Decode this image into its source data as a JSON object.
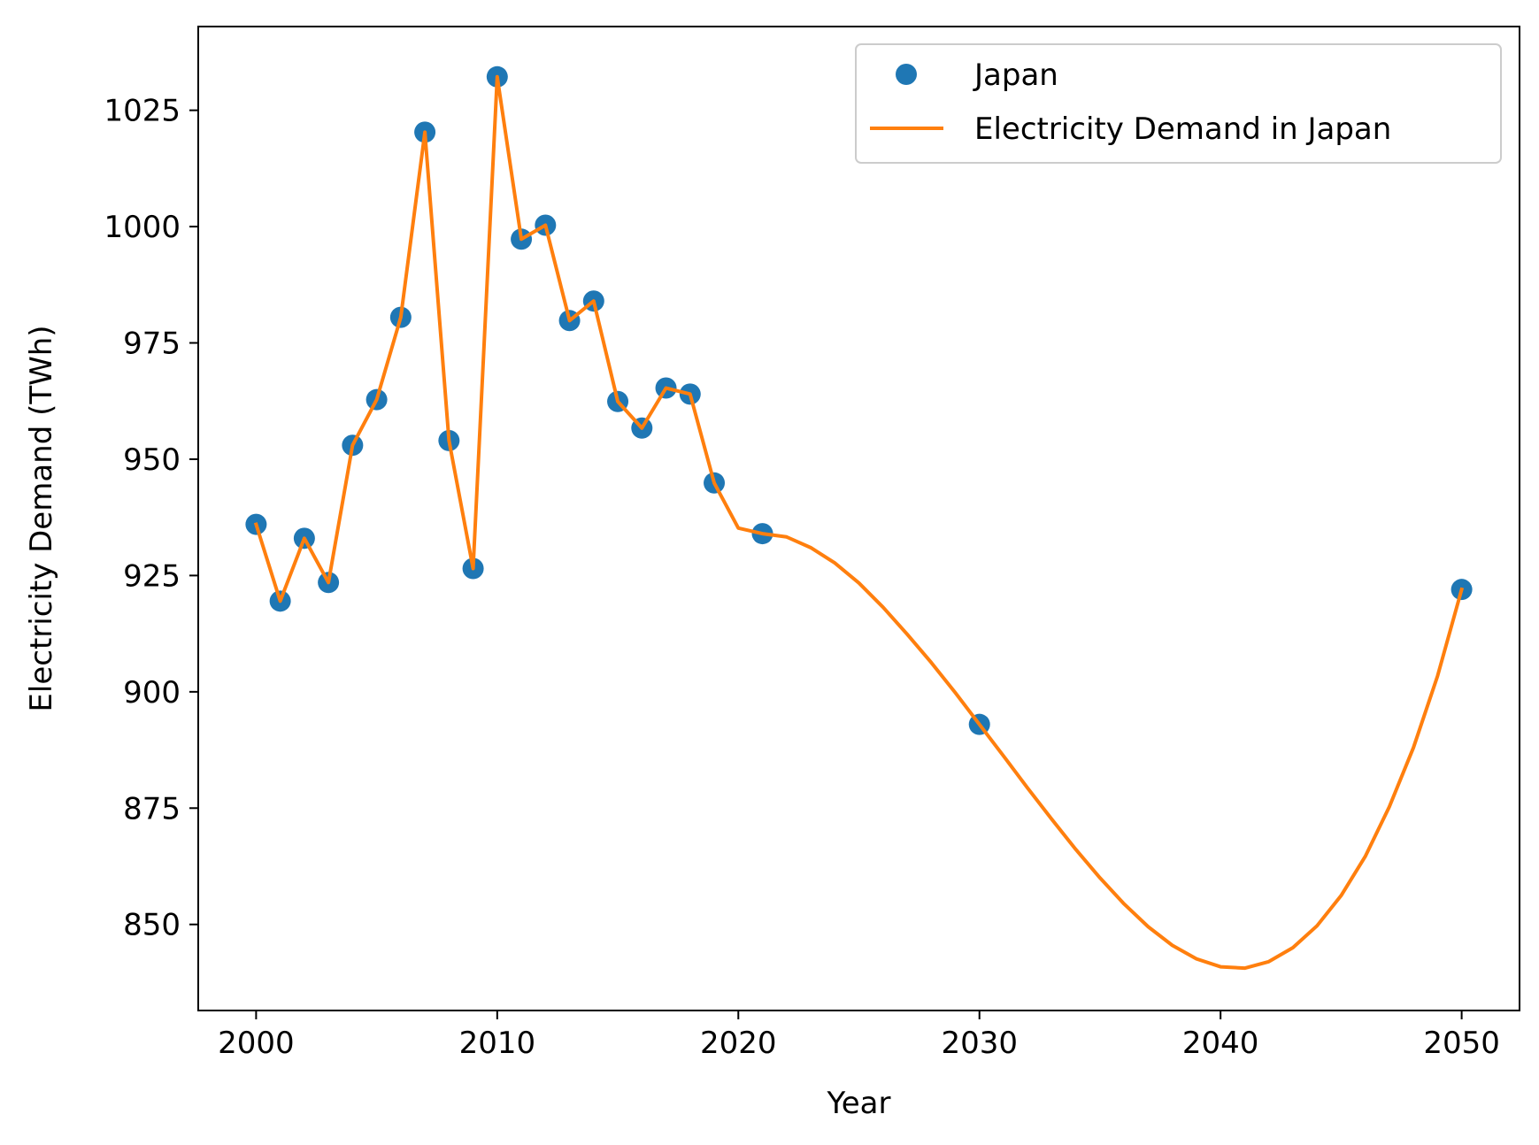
{
  "chart_data": {
    "type": "line",
    "xlabel": "Year",
    "ylabel": "Electricity Demand (TWh)",
    "xlim": [
      1997.6,
      2052.4
    ],
    "ylim": [
      831.5,
      1043.0
    ],
    "xticks": [
      2000,
      2010,
      2020,
      2030,
      2040,
      2050
    ],
    "yticks": [
      850,
      875,
      900,
      925,
      950,
      975,
      1000,
      1025
    ],
    "grid": false,
    "legend_position": "top-right",
    "colors": {
      "points": "#1f77b4",
      "line": "#ff7f0e"
    },
    "series": [
      {
        "name": "Japan",
        "kind": "scatter",
        "x": [
          2000,
          2001,
          2002,
          2003,
          2004,
          2005,
          2006,
          2007,
          2008,
          2009,
          2010,
          2011,
          2012,
          2013,
          2014,
          2015,
          2016,
          2017,
          2018,
          2019,
          2021,
          2030,
          2050
        ],
        "y": [
          936.0,
          919.5,
          933.0,
          923.5,
          953.0,
          962.8,
          980.5,
          1020.3,
          954.0,
          926.5,
          1032.2,
          997.3,
          1000.3,
          979.8,
          984.0,
          962.4,
          956.7,
          965.3,
          964.0,
          944.9,
          934.0,
          893.0,
          922.0
        ]
      },
      {
        "name": "Electricity Demand in Japan",
        "kind": "line",
        "x": [
          2000,
          2001,
          2002,
          2003,
          2004,
          2005,
          2006,
          2007,
          2008,
          2009,
          2010,
          2011,
          2012,
          2013,
          2014,
          2015,
          2016,
          2017,
          2018,
          2019,
          2020,
          2021,
          2022,
          2023,
          2024,
          2025,
          2026,
          2027,
          2028,
          2029,
          2030,
          2031,
          2032,
          2033,
          2034,
          2035,
          2036,
          2037,
          2038,
          2039,
          2040,
          2041,
          2042,
          2043,
          2044,
          2045,
          2046,
          2047,
          2048,
          2049,
          2050
        ],
        "y": [
          936.0,
          919.5,
          933.0,
          923.5,
          953.0,
          962.8,
          980.5,
          1020.3,
          954.0,
          926.5,
          1032.2,
          997.3,
          1000.3,
          979.8,
          984.0,
          962.4,
          956.7,
          965.3,
          964.0,
          944.9,
          935.2,
          934.0,
          933.3,
          931.0,
          927.7,
          923.4,
          918.2,
          912.4,
          906.3,
          899.8,
          893.0,
          886.2,
          879.3,
          872.6,
          866.1,
          860.0,
          854.4,
          849.5,
          845.5,
          842.6,
          840.9,
          840.6,
          842.0,
          845.0,
          849.7,
          856.2,
          864.6,
          875.3,
          888.0,
          903.4,
          922.0
        ]
      }
    ]
  }
}
